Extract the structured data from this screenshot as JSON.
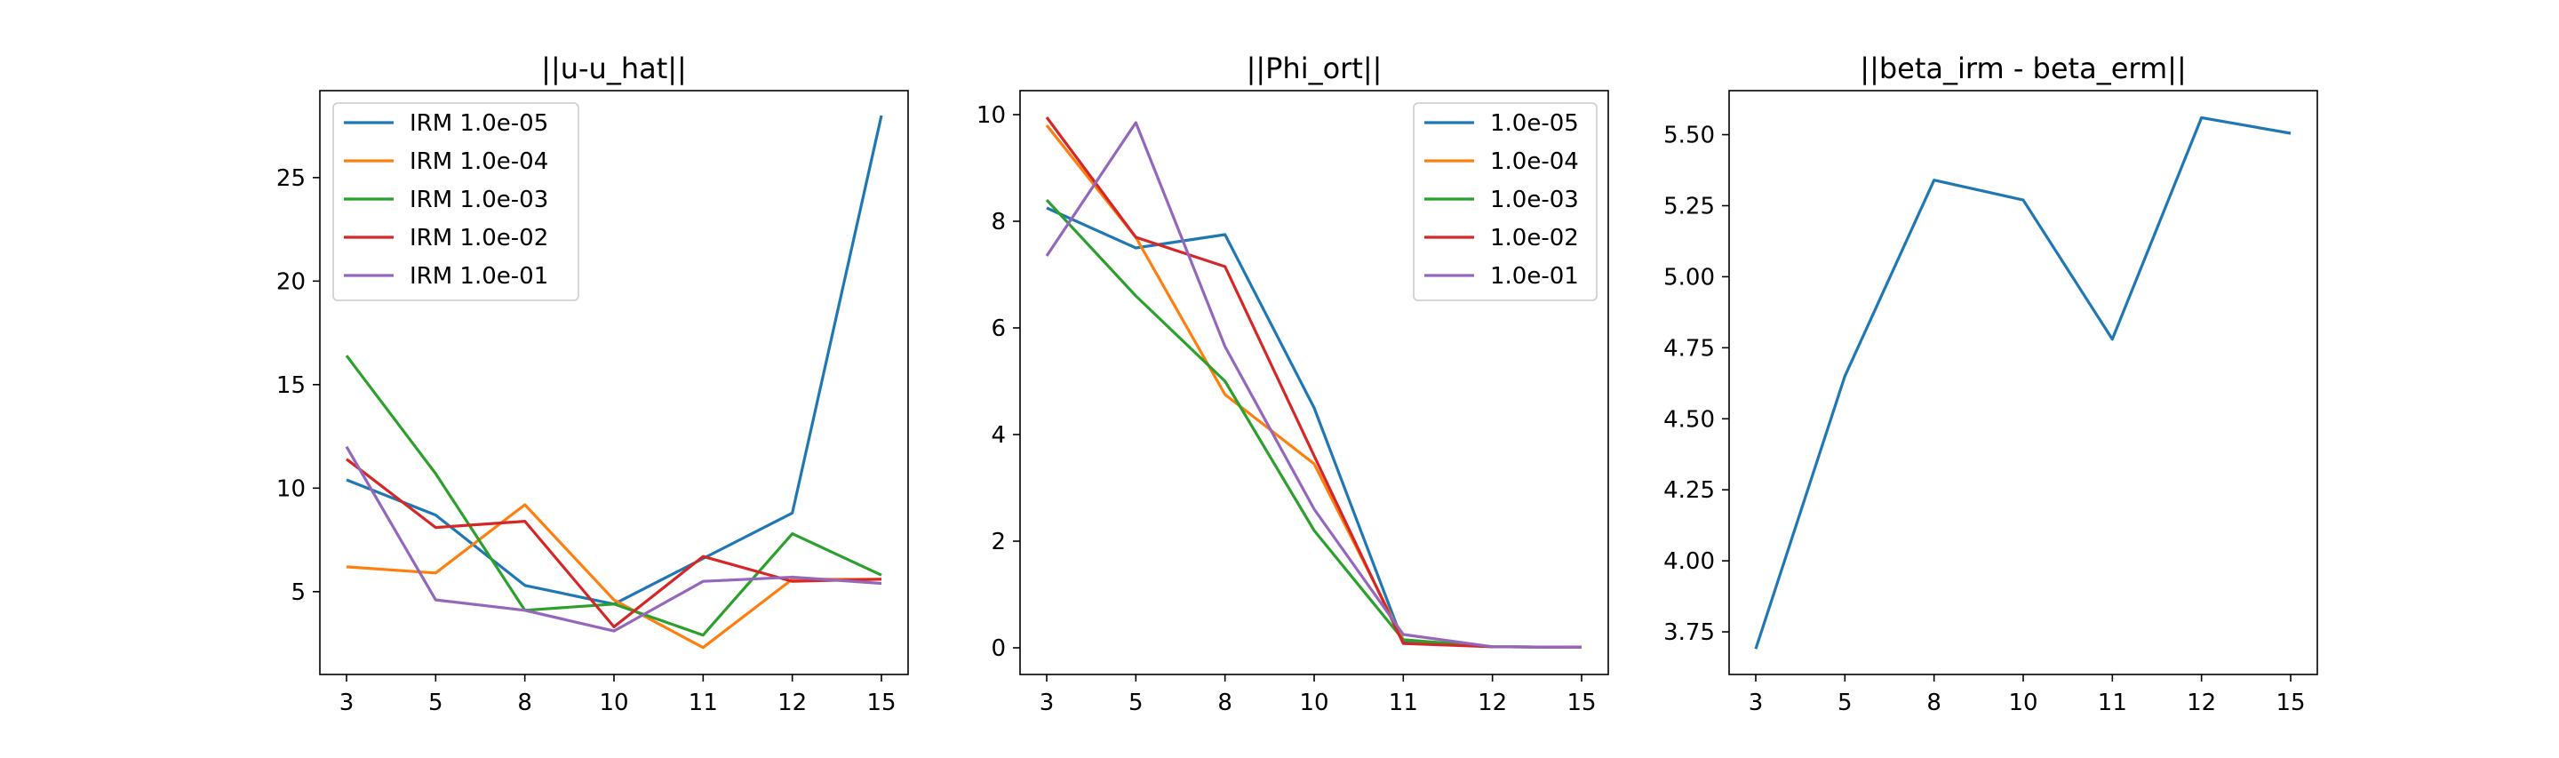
{
  "chart_data": [
    {
      "type": "line",
      "title": "||u-u_hat||",
      "categories": [
        "3",
        "5",
        "8",
        "10",
        "11",
        "12",
        "15"
      ],
      "yticks": [
        5,
        10,
        15,
        20,
        25
      ],
      "ylim": [
        1.0,
        29.2
      ],
      "legend": "upper-left",
      "series": [
        {
          "name": "IRM 1.0e-05",
          "color": "#1f77b4",
          "values": [
            10.4,
            8.7,
            5.3,
            4.4,
            6.6,
            8.8,
            28.0
          ]
        },
        {
          "name": "IRM 1.0e-04",
          "color": "#ff7f0e",
          "values": [
            6.2,
            5.9,
            9.2,
            4.6,
            2.3,
            5.6,
            5.6
          ]
        },
        {
          "name": "IRM 1.0e-03",
          "color": "#2ca02c",
          "values": [
            16.4,
            10.7,
            4.1,
            4.4,
            2.9,
            7.8,
            5.8
          ]
        },
        {
          "name": "IRM 1.0e-02",
          "color": "#d62728",
          "values": [
            11.4,
            8.1,
            8.4,
            3.3,
            6.7,
            5.5,
            5.6
          ]
        },
        {
          "name": "IRM 1.0e-01",
          "color": "#9467bd",
          "values": [
            12.0,
            4.6,
            4.1,
            3.1,
            5.5,
            5.7,
            5.4
          ]
        }
      ]
    },
    {
      "type": "line",
      "title": "||Phi_ort||",
      "categories": [
        "3",
        "5",
        "8",
        "10",
        "11",
        "12",
        "15"
      ],
      "yticks": [
        0,
        2,
        4,
        6,
        8,
        10
      ],
      "ylim": [
        -0.5,
        10.45
      ],
      "legend": "upper-right",
      "series": [
        {
          "name": "1.0e-05",
          "color": "#1f77b4",
          "values": [
            8.25,
            7.5,
            7.75,
            4.5,
            0.1,
            0.02,
            0.01
          ]
        },
        {
          "name": "1.0e-04",
          "color": "#ff7f0e",
          "values": [
            9.8,
            7.7,
            4.75,
            3.45,
            0.15,
            0.02,
            0.01
          ]
        },
        {
          "name": "1.0e-03",
          "color": "#2ca02c",
          "values": [
            8.4,
            6.6,
            5.0,
            2.2,
            0.15,
            0.02,
            0.01
          ]
        },
        {
          "name": "1.0e-02",
          "color": "#d62728",
          "values": [
            9.95,
            7.7,
            7.15,
            3.6,
            0.08,
            0.02,
            0.01
          ]
        },
        {
          "name": "1.0e-01",
          "color": "#9467bd",
          "values": [
            7.35,
            9.85,
            5.65,
            2.6,
            0.25,
            0.02,
            0.01
          ]
        }
      ]
    },
    {
      "type": "line",
      "title": "||beta_irm - beta_erm||",
      "categories": [
        "3",
        "5",
        "8",
        "10",
        "11",
        "12",
        "15"
      ],
      "yticks": [
        "3.75",
        "4.00",
        "4.25",
        "4.50",
        "4.75",
        "5.00",
        "5.25",
        "5.50"
      ],
      "ylim": [
        3.6,
        5.655
      ],
      "legend": "none",
      "series": [
        {
          "color": "#1f77b4",
          "values": [
            3.69,
            4.65,
            5.34,
            5.27,
            4.78,
            5.56,
            5.505
          ]
        }
      ]
    }
  ]
}
